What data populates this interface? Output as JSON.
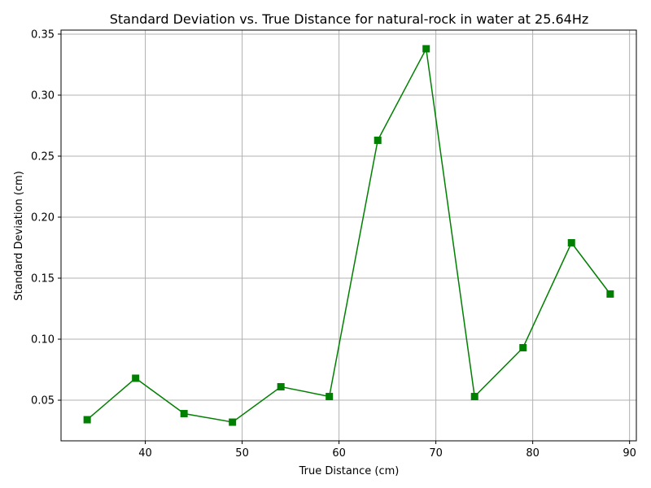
{
  "chart_data": {
    "type": "line",
    "title": "Standard Deviation vs. True Distance for natural-rock in water at 25.64Hz",
    "xlabel": "True Distance (cm)",
    "ylabel": "Standard Deviation (cm)",
    "xlim": [
      31.3,
      90.7
    ],
    "ylim": [
      0.0167,
      0.3533
    ],
    "xticks": [
      40,
      50,
      60,
      70,
      80,
      90
    ],
    "yticks": [
      0.05,
      0.1,
      0.15,
      0.2,
      0.25,
      0.3,
      0.35
    ],
    "xtick_labels": [
      "40",
      "50",
      "60",
      "70",
      "80",
      "90"
    ],
    "ytick_labels": [
      "0.05",
      "0.10",
      "0.15",
      "0.20",
      "0.25",
      "0.30",
      "0.35"
    ],
    "grid": true,
    "marker": "square",
    "color": "#008000",
    "x": [
      34,
      39,
      44,
      49,
      54,
      59,
      64,
      69,
      74,
      79,
      84,
      88
    ],
    "y": [
      0.034,
      0.068,
      0.039,
      0.032,
      0.061,
      0.053,
      0.263,
      0.338,
      0.053,
      0.093,
      0.179,
      0.137
    ]
  }
}
